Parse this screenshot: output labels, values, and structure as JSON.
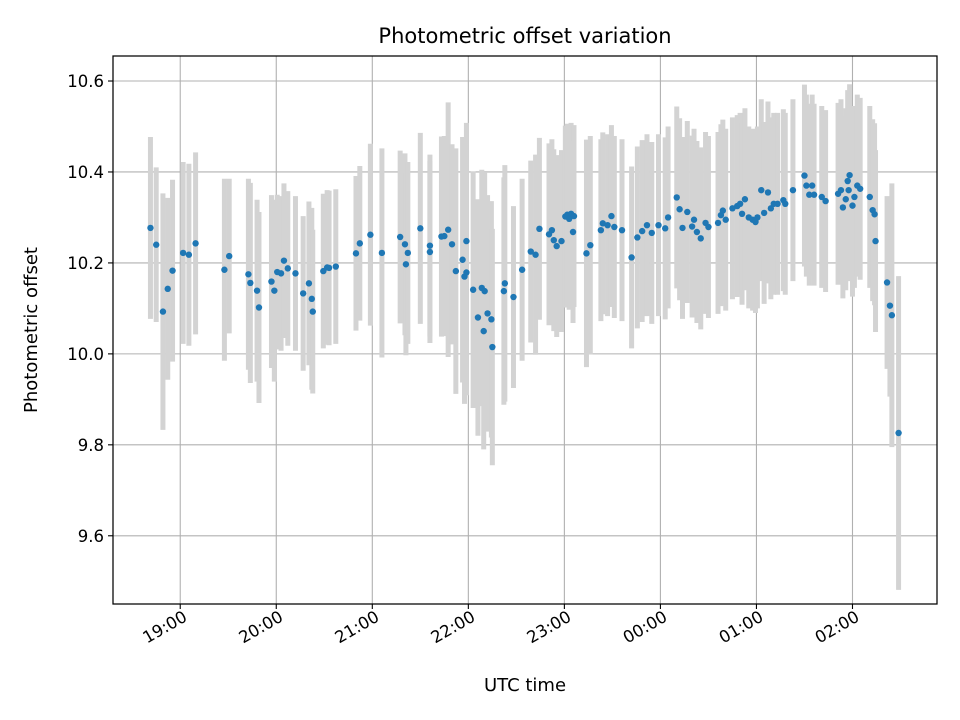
{
  "chart_data": {
    "type": "scatter",
    "title": "Photometric offset variation",
    "xlabel": "UTC time",
    "ylabel": "Photometric offset",
    "x_unit": "hours (UTC, continuing past midnight)",
    "xlim": [
      18.3,
      26.88
    ],
    "ylim": [
      9.45,
      10.655
    ],
    "x_ticks": [
      {
        "value": 19,
        "label": "19:00"
      },
      {
        "value": 20,
        "label": "20:00"
      },
      {
        "value": 21,
        "label": "21:00"
      },
      {
        "value": 22,
        "label": "22:00"
      },
      {
        "value": 23,
        "label": "23:00"
      },
      {
        "value": 24,
        "label": "00:00"
      },
      {
        "value": 25,
        "label": "01:00"
      },
      {
        "value": 26,
        "label": "02:00"
      }
    ],
    "y_ticks": [
      {
        "value": 9.6,
        "label": "9.6"
      },
      {
        "value": 9.8,
        "label": "9.8"
      },
      {
        "value": 10.0,
        "label": "10.0"
      },
      {
        "value": 10.2,
        "label": "10.2"
      },
      {
        "value": 10.4,
        "label": "10.4"
      },
      {
        "value": 10.6,
        "label": "10.6"
      }
    ],
    "grid": true,
    "colors": {
      "points": "#1f77b4",
      "errorbars": "#d3d3d3",
      "grid": "#b0b0b0"
    },
    "series": [
      {
        "points": [
          [
            18.69,
            10.277,
            0.2
          ],
          [
            18.75,
            10.24,
            0.17
          ],
          [
            18.82,
            10.093,
            0.26
          ],
          [
            18.87,
            10.143,
            0.2
          ],
          [
            18.92,
            10.183,
            0.2
          ],
          [
            19.03,
            10.222,
            0.2
          ],
          [
            19.09,
            10.218,
            0.2
          ],
          [
            19.16,
            10.243,
            0.2
          ],
          [
            19.46,
            10.185,
            0.2
          ],
          [
            19.51,
            10.215,
            0.17
          ],
          [
            19.71,
            10.175,
            0.21
          ],
          [
            19.73,
            10.156,
            0.22
          ],
          [
            19.8,
            10.139,
            0.2
          ],
          [
            19.82,
            10.102,
            0.21
          ],
          [
            19.95,
            10.159,
            0.19
          ],
          [
            19.98,
            10.139,
            0.2
          ],
          [
            20.01,
            10.18,
            0.17
          ],
          [
            20.05,
            10.177,
            0.17
          ],
          [
            20.08,
            10.205,
            0.17
          ],
          [
            20.12,
            10.188,
            0.17
          ],
          [
            20.2,
            10.177,
            0.17
          ],
          [
            20.28,
            10.133,
            0.17
          ],
          [
            20.34,
            10.155,
            0.18
          ],
          [
            20.37,
            10.121,
            0.2
          ],
          [
            20.38,
            10.093,
            0.18
          ],
          [
            20.49,
            10.182,
            0.17
          ],
          [
            20.53,
            10.19,
            0.17
          ],
          [
            20.55,
            10.189,
            0.17
          ],
          [
            20.62,
            10.192,
            0.17
          ],
          [
            20.83,
            10.221,
            0.17
          ],
          [
            20.87,
            10.243,
            0.17
          ],
          [
            20.98,
            10.262,
            0.2
          ],
          [
            21.1,
            10.222,
            0.23
          ],
          [
            21.29,
            10.257,
            0.19
          ],
          [
            21.34,
            10.241,
            0.2
          ],
          [
            21.35,
            10.197,
            0.2
          ],
          [
            21.37,
            10.222,
            0.2
          ],
          [
            21.5,
            10.276,
            0.21
          ],
          [
            21.6,
            10.238,
            0.2
          ],
          [
            21.6,
            10.224,
            0.2
          ],
          [
            21.72,
            10.258,
            0.22
          ],
          [
            21.75,
            10.259,
            0.22
          ],
          [
            21.79,
            10.273,
            0.28
          ],
          [
            21.83,
            10.241,
            0.22
          ],
          [
            21.87,
            10.182,
            0.27
          ],
          [
            21.94,
            10.207,
            0.27
          ],
          [
            21.96,
            10.17,
            0.28
          ],
          [
            21.98,
            10.179,
            0.27
          ],
          [
            21.98,
            10.248,
            0.26
          ],
          [
            22.05,
            10.141,
            0.26
          ],
          [
            22.1,
            10.08,
            0.26
          ],
          [
            22.14,
            10.145,
            0.26
          ],
          [
            22.16,
            10.05,
            0.26
          ],
          [
            22.17,
            10.138,
            0.26
          ],
          [
            22.2,
            10.089,
            0.26
          ],
          [
            22.24,
            10.076,
            0.26
          ],
          [
            22.25,
            10.015,
            0.26
          ],
          [
            22.37,
            10.138,
            0.25
          ],
          [
            22.38,
            10.155,
            0.26
          ],
          [
            22.47,
            10.125,
            0.2
          ],
          [
            22.56,
            10.185,
            0.2
          ],
          [
            22.65,
            10.225,
            0.2
          ],
          [
            22.7,
            10.218,
            0.22
          ],
          [
            22.74,
            10.275,
            0.2
          ],
          [
            22.84,
            10.263,
            0.2
          ],
          [
            22.87,
            10.272,
            0.2
          ],
          [
            22.89,
            10.25,
            0.2
          ],
          [
            22.92,
            10.237,
            0.2
          ],
          [
            22.97,
            10.248,
            0.2
          ],
          [
            23.01,
            10.302,
            0.2
          ],
          [
            23.03,
            10.306,
            0.2
          ],
          [
            23.05,
            10.297,
            0.2
          ],
          [
            23.07,
            10.308,
            0.2
          ],
          [
            23.1,
            10.303,
            0.2
          ],
          [
            23.09,
            10.268,
            0.2
          ],
          [
            23.23,
            10.221,
            0.25
          ],
          [
            23.27,
            10.239,
            0.24
          ],
          [
            23.38,
            10.272,
            0.2
          ],
          [
            23.4,
            10.287,
            0.2
          ],
          [
            23.45,
            10.283,
            0.2
          ],
          [
            23.49,
            10.303,
            0.2
          ],
          [
            23.52,
            10.279,
            0.2
          ],
          [
            23.6,
            10.272,
            0.2
          ],
          [
            23.7,
            10.212,
            0.2
          ],
          [
            23.76,
            10.256,
            0.2
          ],
          [
            23.81,
            10.27,
            0.2
          ],
          [
            23.86,
            10.283,
            0.2
          ],
          [
            23.91,
            10.266,
            0.2
          ],
          [
            23.98,
            10.283,
            0.2
          ],
          [
            24.05,
            10.276,
            0.2
          ],
          [
            24.08,
            10.3,
            0.2
          ],
          [
            24.17,
            10.344,
            0.2
          ],
          [
            24.2,
            10.318,
            0.2
          ],
          [
            24.23,
            10.277,
            0.2
          ],
          [
            24.28,
            10.312,
            0.2
          ],
          [
            24.33,
            10.28,
            0.2
          ],
          [
            24.35,
            10.295,
            0.2
          ],
          [
            24.38,
            10.268,
            0.2
          ],
          [
            24.42,
            10.254,
            0.2
          ],
          [
            24.47,
            10.288,
            0.2
          ],
          [
            24.5,
            10.279,
            0.2
          ],
          [
            24.6,
            10.288,
            0.2
          ],
          [
            24.63,
            10.305,
            0.2
          ],
          [
            24.65,
            10.315,
            0.2
          ],
          [
            24.68,
            10.295,
            0.2
          ],
          [
            24.75,
            10.32,
            0.2
          ],
          [
            24.8,
            10.325,
            0.2
          ],
          [
            24.83,
            10.33,
            0.2
          ],
          [
            24.85,
            10.308,
            0.2
          ],
          [
            24.88,
            10.34,
            0.2
          ],
          [
            24.92,
            10.3,
            0.2
          ],
          [
            24.96,
            10.295,
            0.2
          ],
          [
            24.99,
            10.29,
            0.2
          ],
          [
            25.01,
            10.3,
            0.2
          ],
          [
            25.05,
            10.36,
            0.2
          ],
          [
            25.08,
            10.31,
            0.2
          ],
          [
            25.12,
            10.355,
            0.2
          ],
          [
            25.15,
            10.32,
            0.2
          ],
          [
            25.18,
            10.33,
            0.2
          ],
          [
            25.22,
            10.33,
            0.2
          ],
          [
            25.28,
            10.338,
            0.2
          ],
          [
            25.3,
            10.33,
            0.2
          ],
          [
            25.38,
            10.36,
            0.2
          ],
          [
            25.5,
            10.392,
            0.2
          ],
          [
            25.52,
            10.37,
            0.2
          ],
          [
            25.55,
            10.35,
            0.2
          ],
          [
            25.58,
            10.37,
            0.2
          ],
          [
            25.6,
            10.35,
            0.2
          ],
          [
            25.68,
            10.345,
            0.2
          ],
          [
            25.72,
            10.336,
            0.2
          ],
          [
            25.85,
            10.352,
            0.2
          ],
          [
            25.88,
            10.36,
            0.2
          ],
          [
            25.9,
            10.322,
            0.2
          ],
          [
            25.93,
            10.34,
            0.2
          ],
          [
            25.95,
            10.38,
            0.2
          ],
          [
            25.96,
            10.36,
            0.2
          ],
          [
            25.97,
            10.393,
            0.2
          ],
          [
            26.0,
            10.326,
            0.2
          ],
          [
            26.02,
            10.345,
            0.2
          ],
          [
            26.05,
            10.37,
            0.2
          ],
          [
            26.08,
            10.363,
            0.2
          ],
          [
            26.18,
            10.345,
            0.2
          ],
          [
            26.21,
            10.316,
            0.2
          ],
          [
            26.23,
            10.307,
            0.2
          ],
          [
            26.24,
            10.248,
            0.2
          ],
          [
            26.36,
            10.157,
            0.19
          ],
          [
            26.39,
            10.106,
            0.2
          ],
          [
            26.41,
            10.085,
            0.29
          ],
          [
            26.48,
            9.826,
            0.345
          ]
        ]
      }
    ]
  }
}
